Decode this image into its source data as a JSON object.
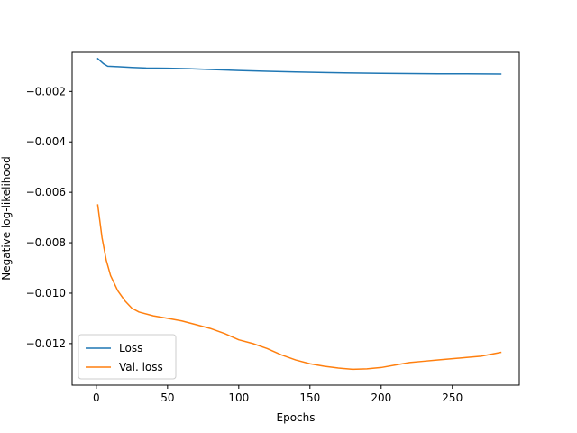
{
  "chart_data": {
    "type": "line",
    "title": "",
    "xlabel": "Epochs",
    "ylabel": "Negative log-likelihood",
    "xlim": [
      -17,
      297
    ],
    "ylim": [
      -0.01365,
      -0.00045
    ],
    "xticks": [
      0,
      50,
      100,
      150,
      200,
      250
    ],
    "yticks": [
      -0.002,
      -0.004,
      -0.006,
      -0.008,
      -0.01,
      -0.012
    ],
    "ytick_labels": [
      "−0.002",
      "−0.004",
      "−0.006",
      "−0.008",
      "−0.010",
      "−0.012"
    ],
    "grid": false,
    "legend": {
      "position": "lower-left"
    },
    "series": [
      {
        "name": "Loss",
        "color": "#1f77b4",
        "x": [
          1,
          5,
          8,
          15,
          25,
          35,
          50,
          65,
          80,
          100,
          120,
          140,
          160,
          180,
          200,
          220,
          240,
          260,
          284
        ],
        "y": [
          -0.0007,
          -0.0009,
          -0.001,
          -0.00102,
          -0.00105,
          -0.00107,
          -0.00108,
          -0.0011,
          -0.00113,
          -0.00117,
          -0.0012,
          -0.00123,
          -0.00125,
          -0.00127,
          -0.00128,
          -0.00129,
          -0.0013,
          -0.0013,
          -0.00131
        ]
      },
      {
        "name": "Val. loss",
        "color": "#ff7f0e",
        "x": [
          1,
          4,
          7,
          10,
          15,
          20,
          25,
          30,
          40,
          50,
          60,
          70,
          80,
          90,
          100,
          110,
          120,
          130,
          140,
          150,
          160,
          170,
          180,
          190,
          200,
          210,
          220,
          230,
          240,
          250,
          260,
          270,
          284
        ],
        "y": [
          -0.0065,
          -0.0078,
          -0.0087,
          -0.0093,
          -0.0099,
          -0.0103,
          -0.0106,
          -0.01075,
          -0.0109,
          -0.011,
          -0.0111,
          -0.01125,
          -0.0114,
          -0.0116,
          -0.01185,
          -0.012,
          -0.0122,
          -0.01245,
          -0.01265,
          -0.0128,
          -0.0129,
          -0.01297,
          -0.01302,
          -0.013,
          -0.01295,
          -0.01285,
          -0.01275,
          -0.0127,
          -0.01265,
          -0.0126,
          -0.01255,
          -0.0125,
          -0.01235
        ]
      }
    ]
  }
}
